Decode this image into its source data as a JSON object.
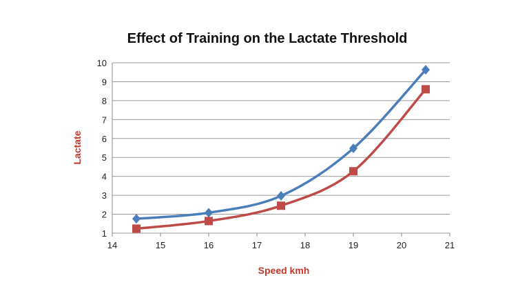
{
  "chart_data": {
    "type": "line",
    "title": "Effect of Training on the Lactate Threshold",
    "xlabel": "Speed kmh",
    "ylabel": "Lactate",
    "xlim": [
      14,
      21
    ],
    "ylim": [
      1,
      10
    ],
    "xticks": [
      "14",
      "15",
      "16",
      "17",
      "18",
      "19",
      "20",
      "21"
    ],
    "yticks": [
      "1",
      "2",
      "3",
      "4",
      "5",
      "6",
      "7",
      "8",
      "9",
      "10"
    ],
    "grid": "horizontal",
    "legend": "none",
    "smooth": true,
    "x": [
      14.5,
      16,
      17.5,
      19,
      20.5
    ],
    "series": [
      {
        "values": [
          1.76,
          2.08,
          2.97,
          5.48,
          9.63
        ],
        "color": "#4a7ebb",
        "marker": "diamond"
      },
      {
        "values": [
          1.24,
          1.64,
          2.45,
          4.27,
          8.6
        ],
        "color": "#be4b48",
        "marker": "square"
      }
    ],
    "label_color": "#c0392b"
  }
}
